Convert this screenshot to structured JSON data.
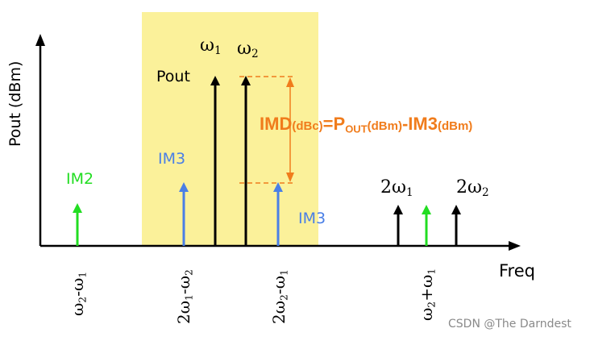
{
  "diagram": {
    "y_axis_label": "Pout (dBm)",
    "x_axis_label": "Freq",
    "pout_label": "Pout",
    "omega1_label": "ω",
    "omega1_sub": "1",
    "omega2_label": "ω",
    "omega2_sub": "2",
    "im2_label": "IM2",
    "im3_left_label": "IM3",
    "im3_right_label": "IM3",
    "harm1_label": "2ω",
    "harm1_sub": "1",
    "harm2_label": "2ω",
    "harm2_sub": "2",
    "imd_formula": {
      "a": "IMD",
      "b": "(dBc)",
      "c": "=P",
      "d": "OUT",
      "e": "(dBm)",
      "f": "-IM3",
      "g": "(dBm)"
    },
    "tick_labels": {
      "t1": "ω",
      "t1_sub_a": "2",
      "t1_mid": "-ω",
      "t1_sub_b": "1",
      "t2": "2ω",
      "t2_sub_a": "1",
      "t2_mid": "-ω",
      "t2_sub_b": "2",
      "t3": "2ω",
      "t3_sub_a": "2",
      "t3_mid": "-ω",
      "t3_sub_b": "1",
      "t4": "ω",
      "t4_sub_a": "2",
      "t4_mid": "+ω",
      "t4_sub_b": "1"
    },
    "watermark": "CSDN @The Darndest",
    "colors": {
      "highlight": "#fbf19a",
      "fundamental": "#000000",
      "im2": "#22dd22",
      "im3": "#4a7fe6",
      "imd": "#f07c1c"
    }
  }
}
